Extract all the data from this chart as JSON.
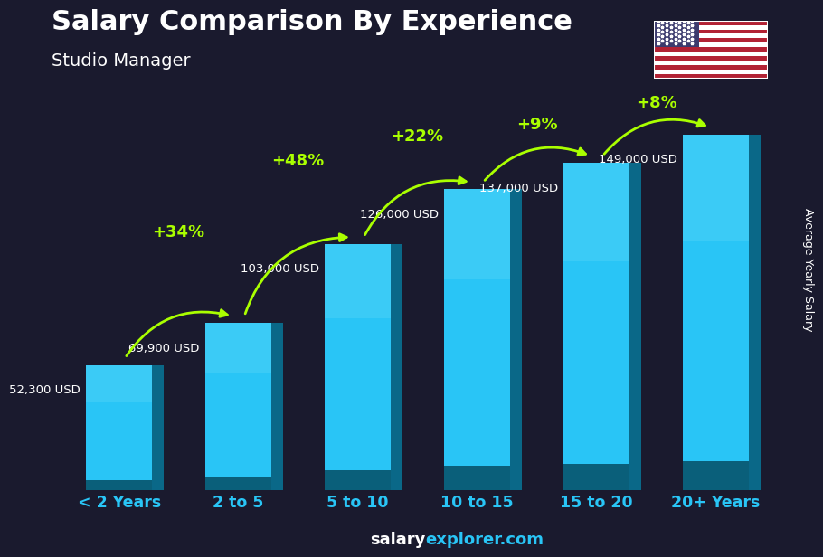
{
  "title": "Salary Comparison By Experience",
  "subtitle": "Studio Manager",
  "ylabel": "Average Yearly Salary",
  "watermark": "salaryexplorer.com",
  "categories": [
    "< 2 Years",
    "2 to 5",
    "5 to 10",
    "10 to 15",
    "15 to 20",
    "20+ Years"
  ],
  "values": [
    52300,
    69900,
    103000,
    126000,
    137000,
    149000
  ],
  "value_labels": [
    "52,300 USD",
    "69,900 USD",
    "103,000 USD",
    "126,000 USD",
    "137,000 USD",
    "149,000 USD"
  ],
  "pct_changes": [
    "+34%",
    "+48%",
    "+22%",
    "+9%",
    "+8%"
  ],
  "bar_color_top": "#29c5f6",
  "bar_color_mid": "#1ab0e0",
  "bar_color_side": "#0e7fa8",
  "bar_color_bottom": "#0a5f80",
  "bg_color": "#1a1a2e",
  "title_color": "#ffffff",
  "subtitle_color": "#ffffff",
  "label_color": "#ffffff",
  "pct_color": "#aaff00",
  "arrow_color": "#aaff00",
  "watermark_salary_color": "#ffffff",
  "watermark_explorer_color": "#29c5f6",
  "xlabel_color": "#29c5f6",
  "ylim": [
    0,
    170000
  ],
  "background_image": true
}
